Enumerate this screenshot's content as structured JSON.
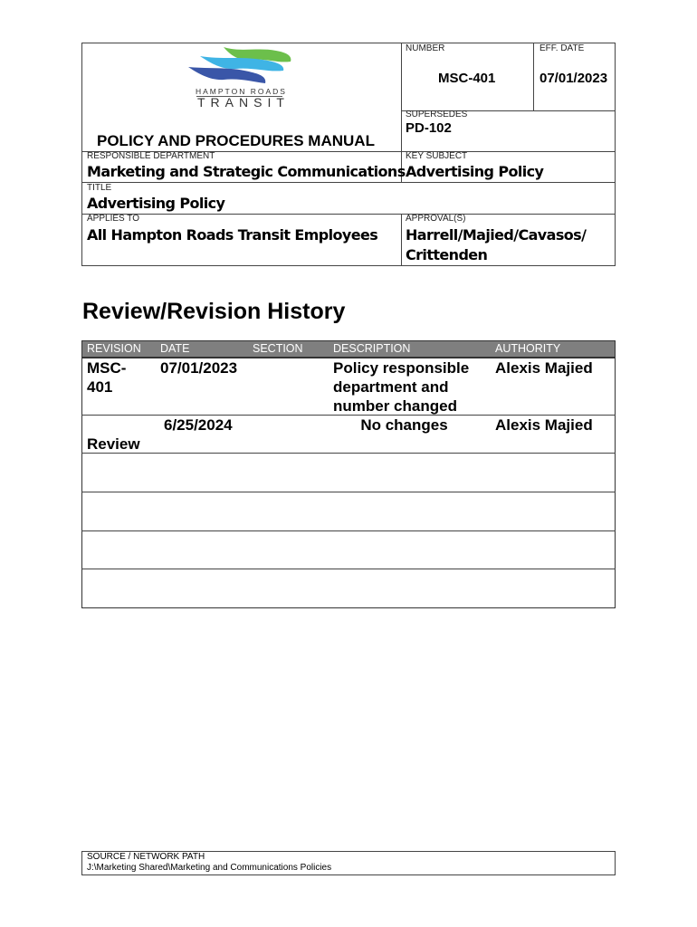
{
  "header": {
    "logo_text_1": "HAMPTON ROADS",
    "logo_text_2": "TRANSIT",
    "manual_title": "POLICY AND PROCEDURES MANUAL",
    "number_label": "NUMBER",
    "number": "MSC-401",
    "eff_date_label": "EFF. DATE",
    "eff_date": "07/01/2023",
    "supersedes_label": "SUPERSEDES",
    "supersedes": "PD-102",
    "dept_label": "RESPONSIBLE DEPARTMENT",
    "dept": "Marketing and Strategic Communications",
    "key_subject_label": "KEY SUBJECT",
    "key_subject": "Advertising Policy",
    "title_label": "TITLE",
    "title": "Advertising Policy",
    "applies_label": "APPLIES TO",
    "applies": "All Hampton Roads Transit Employees",
    "approvals_label": "APPROVAL(S)",
    "approvals_1": "Harrell/Majied/Cavasos/",
    "approvals_2": "Crittenden"
  },
  "history": {
    "heading": "Review/Revision History",
    "columns": [
      "REVISION",
      "DATE",
      "SECTION",
      "DESCRIPTION",
      "AUTHORITY"
    ],
    "header_color": "#7f7f7f",
    "rows": [
      {
        "revision": "MSC-\n401",
        "date": "07/01/2023",
        "section": "",
        "description": "Policy responsible department and number changed",
        "authority": "Alexis Majied"
      },
      {
        "revision": "Review",
        "date": "6/25/2024",
        "section": "",
        "description": "No changes",
        "authority": "Alexis Majied"
      }
    ]
  },
  "footer": {
    "label": "SOURCE / NETWORK PATH",
    "path": "J:\\Marketing Shared\\Marketing and Communications Policies"
  }
}
